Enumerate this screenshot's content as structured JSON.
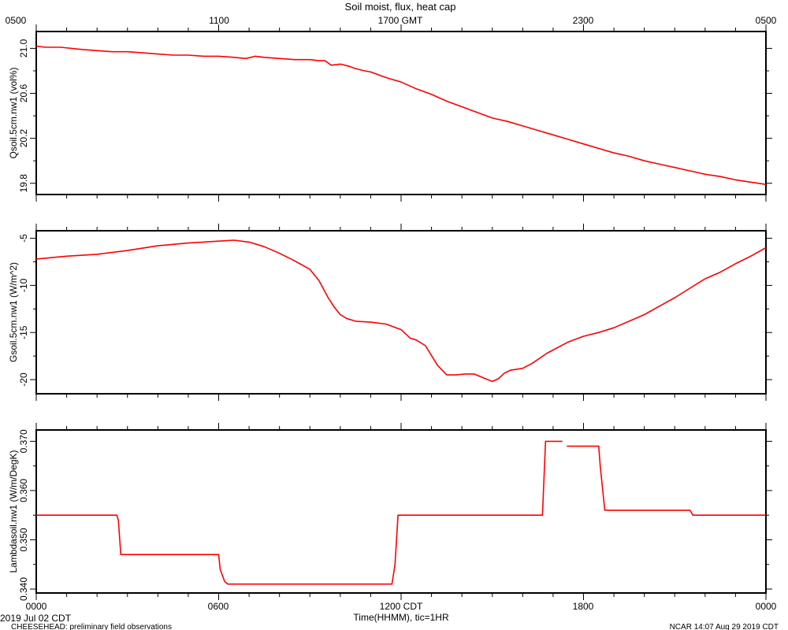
{
  "chart_data": {
    "title": "Soil moist, flux, heat cap",
    "top_axis": {
      "label": "",
      "ticks": [
        "0500",
        "1100",
        "1700 GMT",
        "2300",
        "0500"
      ]
    },
    "bottom_axis": {
      "label": "Time(HHMM), tic=1HR",
      "ticks": [
        "0000",
        "0600",
        "1200 CDT",
        "1800",
        "0000"
      ]
    },
    "x_range_hours": [
      0,
      24
    ],
    "date_label": "2019 Jul 02 CDT",
    "footer_left": "CHEESEHEAD: preliminary field observations",
    "footer_right": "NCAR 14:07 Aug 29 2019 CDT",
    "panels": [
      {
        "type": "line",
        "ylabel": "Qsoil.5cm.nw1 (vol%)",
        "ylim": [
          19.7,
          21.15
        ],
        "yticks": [
          "19.8",
          "20.2",
          "20.6",
          "21.0"
        ],
        "ytick_values": [
          19.8,
          20.2,
          20.6,
          21.0
        ],
        "series": [
          {
            "x": [
              0,
              0.3,
              0.8,
              1.5,
              2,
              2.5,
              2.8,
              3,
              3.5,
              4,
              4.5,
              5,
              5.5,
              6,
              6.5,
              6.9,
              7.2,
              7.5,
              8,
              8.5,
              9,
              9.3,
              9.5,
              9.7,
              10,
              10.3,
              10.5,
              10.8,
              11,
              11.5,
              12,
              12.5,
              13,
              13.5,
              14,
              14.5,
              15,
              15.5,
              16,
              16.5,
              17,
              17.5,
              18,
              18.5,
              19,
              19.5,
              20,
              20.5,
              21,
              21.5,
              22,
              22.5,
              23,
              23.5,
              24
            ],
            "y": [
              21.02,
              21.01,
              21.01,
              20.99,
              20.98,
              20.97,
              20.97,
              20.97,
              20.96,
              20.95,
              20.94,
              20.94,
              20.93,
              20.93,
              20.92,
              20.91,
              20.93,
              20.92,
              20.91,
              20.9,
              20.9,
              20.89,
              20.89,
              20.85,
              20.86,
              20.84,
              20.82,
              20.8,
              20.79,
              20.74,
              20.7,
              20.64,
              20.59,
              20.53,
              20.48,
              20.43,
              20.38,
              20.35,
              20.31,
              20.27,
              20.23,
              20.19,
              20.15,
              20.11,
              20.07,
              20.04,
              20.0,
              19.97,
              19.94,
              19.91,
              19.88,
              19.86,
              19.83,
              19.81,
              19.79
            ]
          }
        ]
      },
      {
        "type": "line",
        "ylabel": "Gsoil.5cm.nw1 (W/m^2)",
        "ylim": [
          -21.5,
          -4.2
        ],
        "yticks": [
          "-20",
          "-15",
          "-10",
          "-5"
        ],
        "ytick_values": [
          -20,
          -15,
          -10,
          -5
        ],
        "series": [
          {
            "x": [
              0,
              1,
              2,
              3,
              4,
              5,
              6,
              6.5,
              7,
              7.5,
              8,
              8.5,
              9,
              9.3,
              9.6,
              9.8,
              10,
              10.2,
              10.5,
              11,
              11.5,
              12,
              12.3,
              12.5,
              12.8,
              13.2,
              13.5,
              13.8,
              14.1,
              14.4,
              14.7,
              15,
              15.2,
              15.4,
              15.6,
              15.8,
              16,
              16.3,
              16.8,
              17.5,
              18,
              18.5,
              19,
              19.5,
              20,
              20.5,
              21,
              21.5,
              22,
              22.5,
              23,
              23.5,
              24
            ],
            "y": [
              -7.2,
              -6.9,
              -6.7,
              -6.3,
              -5.8,
              -5.5,
              -5.3,
              -5.2,
              -5.4,
              -5.9,
              -6.6,
              -7.4,
              -8.3,
              -9.5,
              -11.3,
              -12.3,
              -13.1,
              -13.5,
              -13.8,
              -13.9,
              -14.1,
              -14.7,
              -15.6,
              -15.8,
              -16.4,
              -18.5,
              -19.5,
              -19.5,
              -19.4,
              -19.4,
              -19.8,
              -20.2,
              -19.9,
              -19.3,
              -19.0,
              -18.9,
              -18.8,
              -18.3,
              -17.2,
              -16.0,
              -15.4,
              -15.0,
              -14.5,
              -13.8,
              -13.1,
              -12.2,
              -11.3,
              -10.3,
              -9.3,
              -8.6,
              -7.7,
              -6.9,
              -6.0
            ]
          }
        ]
      },
      {
        "type": "line",
        "ylabel": "Lambdasoil.nw1 (W/m/DegK)",
        "ylim": [
          0.3392,
          0.3723
        ],
        "yticks": [
          "0.340",
          "0.350",
          "0.360",
          "0.370"
        ],
        "ytick_values": [
          0.34,
          0.35,
          0.36,
          0.37
        ],
        "series": [
          {
            "x": [
              0,
              2.65,
              2.7,
              2.78,
              6,
              6.05,
              6.2,
              6.3,
              11.7,
              11.8,
              11.9,
              16.65,
              16.75,
              17.3
            ],
            "y": [
              0.355,
              0.355,
              0.354,
              0.347,
              0.347,
              0.344,
              0.3415,
              0.341,
              0.341,
              0.345,
              0.355,
              0.355,
              0.37,
              0.37
            ]
          },
          {
            "x": [
              17.45,
              18.5,
              18.55,
              18.7,
              21.5,
              21.6,
              21.7,
              24
            ],
            "y": [
              0.369,
              0.369,
              0.365,
              0.356,
              0.356,
              0.355,
              0.355,
              0.355
            ]
          }
        ]
      }
    ]
  }
}
